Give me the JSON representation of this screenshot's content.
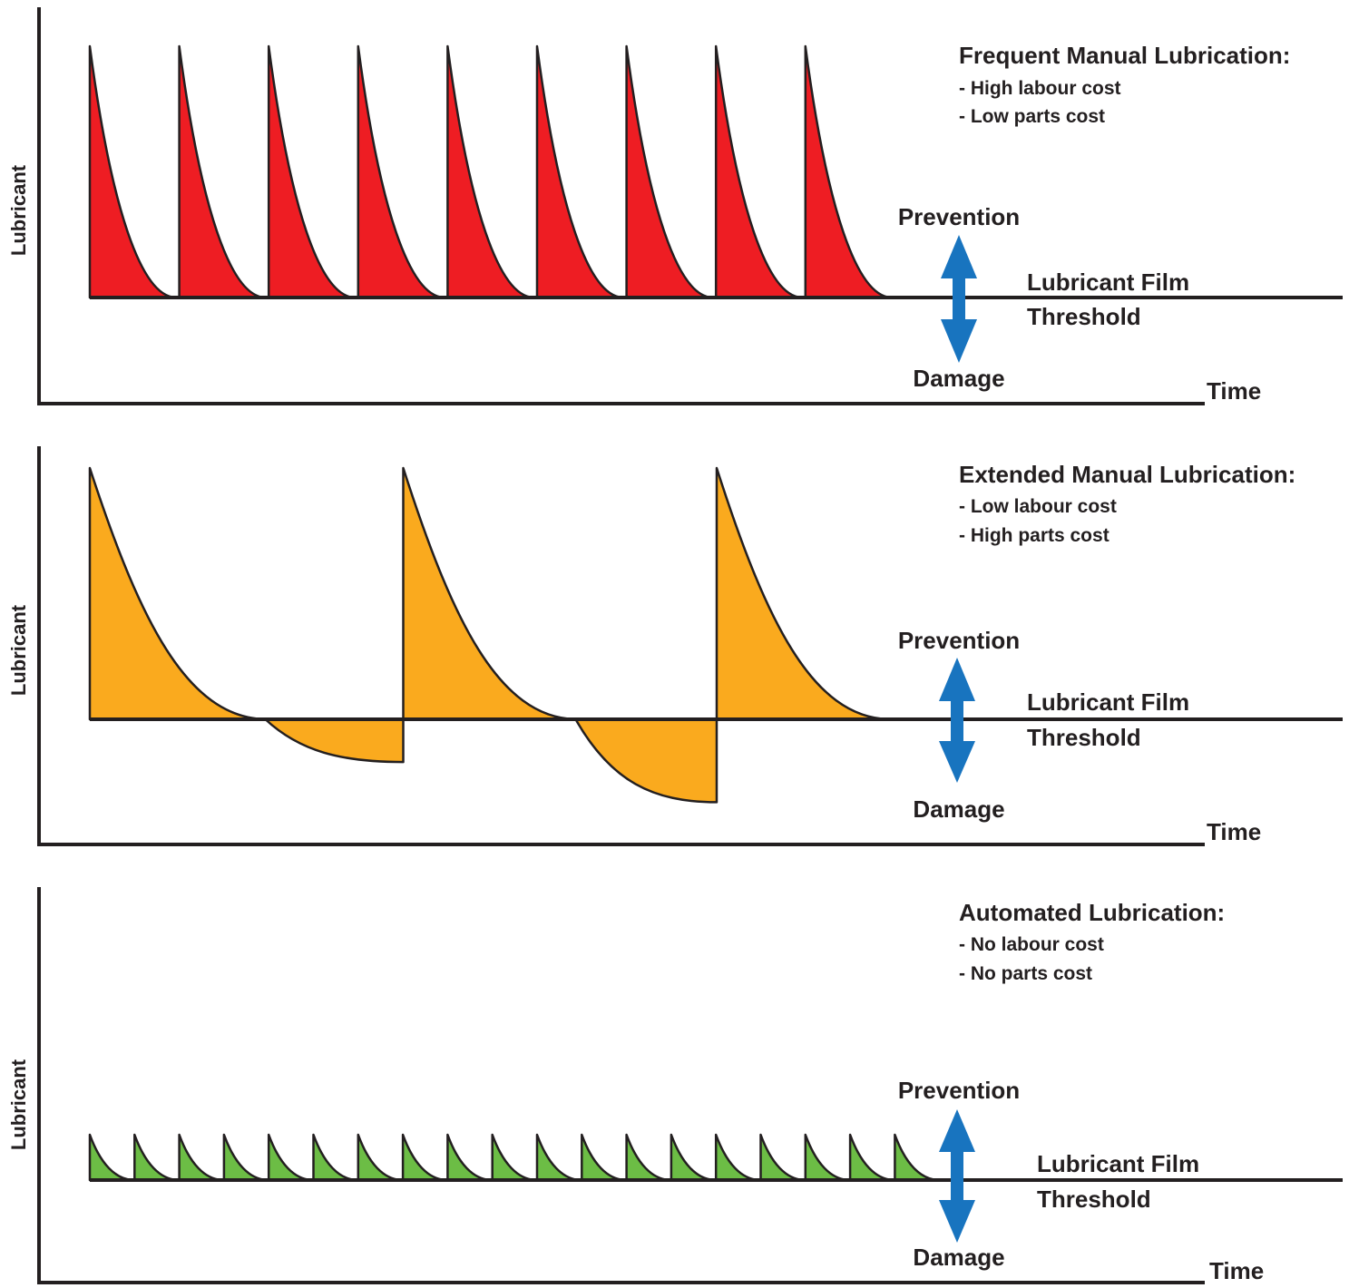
{
  "colors": {
    "frequent": "#ee1d23",
    "extended": "#faaa1e",
    "automated": "#6cbd45",
    "arrow": "#1874bf",
    "ink": "#231f20"
  },
  "panels": [
    {
      "id": "frequent",
      "title": "Frequent Manual Lubrication:",
      "bullets": [
        "- High labour cost",
        "- Low parts cost"
      ],
      "y_axis_label": "Lubricant",
      "x_axis_label": "Time",
      "threshold_label_line1": "Lubricant Film",
      "threshold_label_line2": "Threshold",
      "above_label": "Prevention",
      "below_label": "Damage",
      "fill_color_key": "frequent",
      "pulse_count": 9,
      "pulse_peak": 1.0,
      "pulse_trough": 0.0,
      "arrow_icon": "double-headed-arrow-icon"
    },
    {
      "id": "extended",
      "title": "Extended Manual Lubrication:",
      "bullets": [
        "- Low labour cost",
        "- High parts cost"
      ],
      "y_axis_label": "Lubricant",
      "x_axis_label": "Time",
      "threshold_label_line1": "Lubricant Film",
      "threshold_label_line2": "Threshold",
      "above_label": "Prevention",
      "below_label": "Damage",
      "fill_color_key": "extended",
      "pulse_count": 3,
      "pulse_peak": 1.0,
      "pulse_troughs": [
        -0.17,
        -0.33,
        0.0
      ],
      "arrow_icon": "double-headed-arrow-icon"
    },
    {
      "id": "automated",
      "title": "Automated Lubrication:",
      "bullets": [
        "- No labour cost",
        "- No parts cost"
      ],
      "y_axis_label": "Lubricant",
      "x_axis_label": "Time",
      "threshold_label_line1": "Lubricant Film",
      "threshold_label_line2": "Threshold",
      "above_label": "Prevention",
      "below_label": "Damage",
      "fill_color_key": "automated",
      "pulse_count": 19,
      "pulse_peak": 1.0,
      "pulse_trough": 0.0,
      "arrow_icon": "double-headed-arrow-icon"
    }
  ]
}
